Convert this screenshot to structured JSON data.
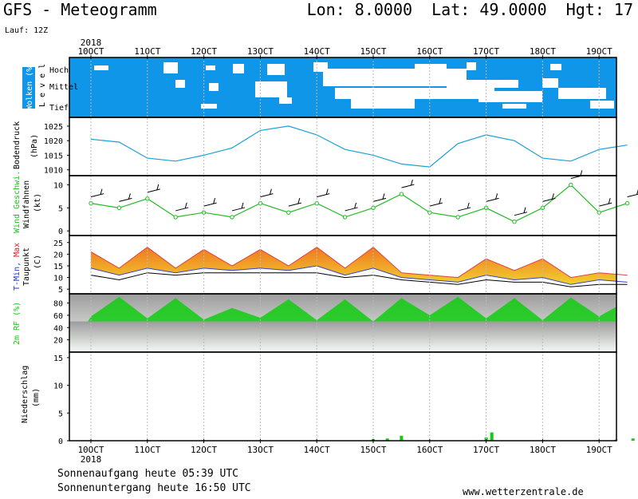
{
  "header": {
    "title": "GFS - Meteogramm",
    "coords": "Lon: 8.0000  Lat: 49.0000  Hgt: 17",
    "run": "Lauf: 12Z"
  },
  "footer": {
    "sunrise": "Sonnenaufgang heute 05:39 UTC",
    "sunset": "Sonnenuntergang heute 16:50 UTC",
    "website": "www.wetterzentrale.de"
  },
  "colors": {
    "cloud_blue": "#1096e8",
    "pressure_line": "#1aa0d8",
    "wind_green": "#22bb22",
    "temp_orange": "#f07820",
    "temp_yellow": "#f0d030",
    "rh_green": "#10cc10",
    "precip_green": "#10cc10"
  },
  "chart_data": [
    {
      "type": "area",
      "title": "Wolken (%)",
      "ylabel": "Level",
      "levels": [
        "Hoch",
        "Mittel",
        "Tief"
      ],
      "x_labels": [
        "10OCT",
        "11OCT",
        "12OCT",
        "13OCT",
        "14OCT",
        "15OCT",
        "16OCT",
        "17OCT",
        "18OCT",
        "19OCT"
      ],
      "year_label": "2018"
    },
    {
      "type": "line",
      "ylabel": "Bodendruck",
      "unit": "(hPa)",
      "yticks": [
        1010,
        1015,
        1020,
        1025
      ],
      "ylim": [
        1008,
        1028
      ],
      "x": [
        0,
        0.5,
        1,
        1.5,
        2,
        2.5,
        3,
        3.5,
        4,
        4.5,
        5,
        5.5,
        6,
        6.5,
        7,
        7.5,
        8,
        8.5,
        9,
        9.5
      ],
      "values": [
        1020.5,
        1019.5,
        1014,
        1013,
        1015,
        1017.5,
        1023.5,
        1025,
        1022,
        1017,
        1015,
        1012,
        1011,
        1019,
        1022,
        1020,
        1014,
        1013,
        1017,
        1018.5
      ]
    },
    {
      "type": "line",
      "ylabel": "Wind Geschwi.",
      "ylabel2": "Windfahnen",
      "unit": "(kt)",
      "yticks": [
        0,
        5,
        10
      ],
      "ylim": [
        -1,
        12
      ],
      "x": [
        0,
        0.5,
        1,
        1.5,
        2,
        2.5,
        3,
        3.5,
        4,
        4.5,
        5,
        5.5,
        6,
        6.5,
        7,
        7.5,
        8,
        8.5,
        9,
        9.5
      ],
      "values": [
        6,
        5,
        7,
        3,
        4,
        3,
        6,
        4,
        6,
        3,
        5,
        8,
        4,
        3,
        5,
        2,
        5,
        10,
        4,
        6
      ]
    },
    {
      "type": "area",
      "ylabel": "T-Min, Max",
      "ylabel2": "Taupunkt",
      "unit": "(C)",
      "yticks": [
        5,
        10,
        15,
        20,
        25
      ],
      "ylim": [
        3,
        28
      ],
      "x": [
        0,
        0.5,
        1,
        1.5,
        2,
        2.5,
        3,
        3.5,
        4,
        4.5,
        5,
        5.5,
        6,
        6.5,
        7,
        7.5,
        8,
        8.5,
        9,
        9.5
      ],
      "tmax": [
        21,
        14,
        23,
        14,
        22,
        15,
        22,
        15,
        23,
        14,
        23,
        12,
        11,
        10,
        18,
        13,
        18,
        10,
        12,
        11
      ],
      "tmin": [
        14,
        11,
        14,
        12,
        14,
        13,
        14,
        13,
        15,
        11,
        14,
        10,
        9,
        8,
        11,
        9,
        10,
        7,
        9,
        8
      ],
      "dewpoint": [
        11,
        9,
        12,
        11,
        12,
        12,
        12,
        12,
        12,
        10,
        11,
        9,
        8,
        7,
        9,
        8,
        8,
        6,
        7,
        7
      ]
    },
    {
      "type": "area",
      "ylabel": "2m RF (%)",
      "yticks": [
        20,
        40,
        60,
        80
      ],
      "ylim": [
        0,
        95
      ],
      "x": [
        0,
        0.5,
        1,
        1.5,
        2,
        2.5,
        3,
        3.5,
        4,
        4.5,
        5,
        5.5,
        6,
        6.5,
        7,
        7.5,
        8,
        8.5,
        9,
        9.5
      ],
      "values": [
        58,
        90,
        55,
        88,
        53,
        72,
        56,
        86,
        52,
        86,
        50,
        88,
        60,
        90,
        55,
        88,
        52,
        89,
        58,
        84
      ]
    },
    {
      "type": "bar",
      "ylabel": "Niederschlag",
      "unit": "(mm)",
      "yticks": [
        0,
        5,
        10,
        15
      ],
      "ylim": [
        0,
        16
      ],
      "x": [
        5,
        5.25,
        5.5,
        7,
        7.1,
        9.3,
        9.6,
        9.8
      ],
      "values": [
        0.3,
        0.4,
        0.9,
        0.6,
        1.5,
        0.2,
        0.4,
        0.3
      ]
    }
  ]
}
